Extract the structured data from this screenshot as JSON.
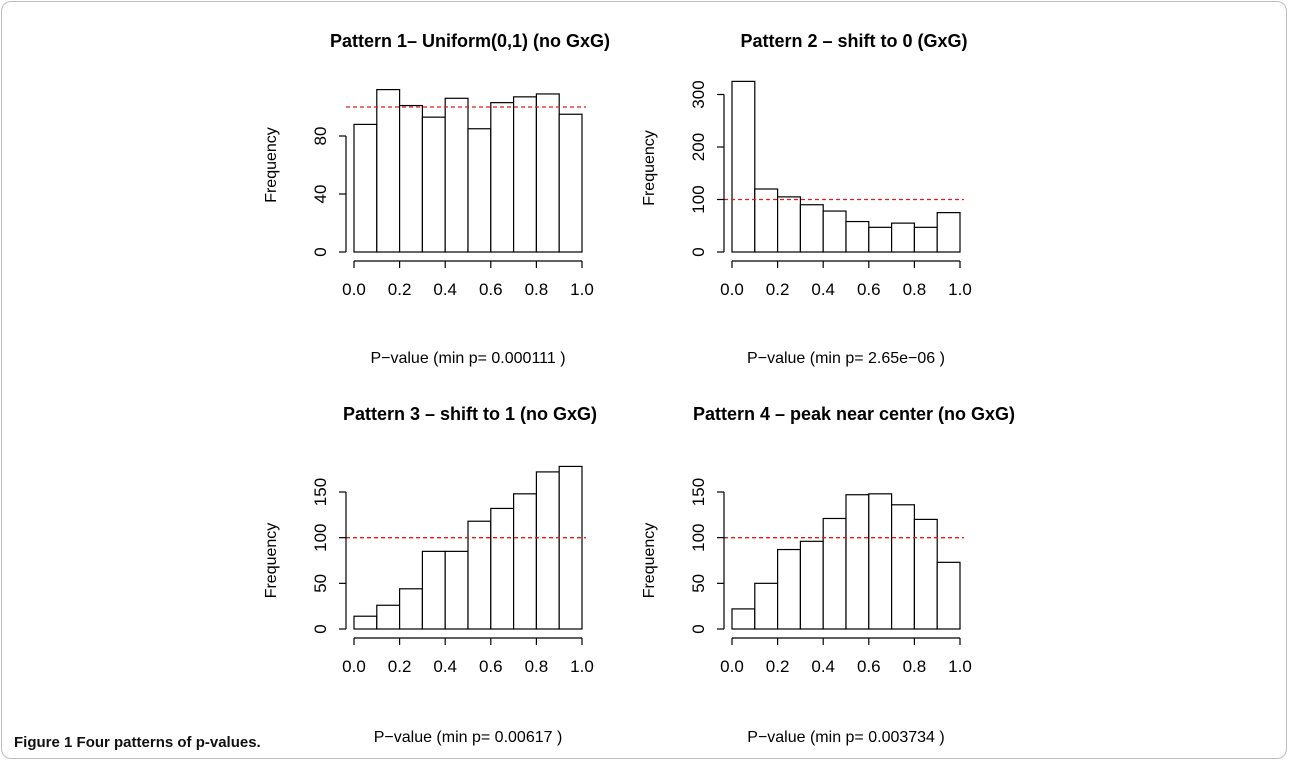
{
  "figure": {
    "caption_label": "Figure 1",
    "caption_text": "Four patterns of p-values."
  },
  "colors": {
    "reference_line": "#e41a1c",
    "bar_fill": "#ffffff",
    "bar_stroke": "#000000"
  },
  "chart_data": [
    {
      "type": "bar",
      "title": "Pattern 1– Uniform(0,1) (no GxG)",
      "xlabel": "P−value (min p= 0.000111 )",
      "ylabel": "Frequency",
      "bin_edges": [
        0.0,
        0.1,
        0.2,
        0.3,
        0.4,
        0.5,
        0.6,
        0.7,
        0.8,
        0.9,
        1.0
      ],
      "values": [
        88,
        112,
        101,
        93,
        106,
        85,
        103,
        107,
        109,
        95
      ],
      "reference_line": 100,
      "xlim": [
        0,
        1
      ],
      "ylim": [
        0,
        120
      ],
      "xticks": [
        0.0,
        0.2,
        0.4,
        0.6,
        0.8,
        1.0
      ],
      "xtick_labels": [
        "0.0",
        "0.2",
        "0.4",
        "0.6",
        "0.8",
        "1.0"
      ],
      "yticks": [
        0,
        40,
        80
      ],
      "ytick_labels": [
        "0",
        "40",
        "80"
      ]
    },
    {
      "type": "bar",
      "title": "Pattern 2 – shift to 0 (GxG)",
      "xlabel": "P−value (min p= 2.65e−06 )",
      "ylabel": "Frequency",
      "bin_edges": [
        0.0,
        0.1,
        0.2,
        0.3,
        0.4,
        0.5,
        0.6,
        0.7,
        0.8,
        0.9,
        1.0
      ],
      "values": [
        325,
        120,
        105,
        90,
        78,
        58,
        47,
        55,
        47,
        75
      ],
      "reference_line": 100,
      "xlim": [
        0,
        1
      ],
      "ylim": [
        0,
        320
      ],
      "xticks": [
        0.0,
        0.2,
        0.4,
        0.6,
        0.8,
        1.0
      ],
      "xtick_labels": [
        "0.0",
        "0.2",
        "0.4",
        "0.6",
        "0.8",
        "1.0"
      ],
      "yticks": [
        0,
        100,
        200,
        300
      ],
      "ytick_labels": [
        "0",
        "100",
        "200",
        "300"
      ]
    },
    {
      "type": "bar",
      "title": "Pattern 3 – shift to 1 (no GxG)",
      "xlabel": "P−value (min p= 0.00617 )",
      "ylabel": "Frequency",
      "bin_edges": [
        0.0,
        0.1,
        0.2,
        0.3,
        0.4,
        0.5,
        0.6,
        0.7,
        0.8,
        0.9,
        1.0
      ],
      "values": [
        14,
        26,
        44,
        85,
        85,
        118,
        132,
        148,
        172,
        178
      ],
      "reference_line": 100,
      "xlim": [
        0,
        1
      ],
      "ylim": [
        0,
        150
      ],
      "xticks": [
        0.0,
        0.2,
        0.4,
        0.6,
        0.8,
        1.0
      ],
      "xtick_labels": [
        "0.0",
        "0.2",
        "0.4",
        "0.6",
        "0.8",
        "1.0"
      ],
      "yticks": [
        0,
        50,
        100,
        150
      ],
      "ytick_labels": [
        "0",
        "50",
        "100",
        "150"
      ]
    },
    {
      "type": "bar",
      "title": "Pattern 4 – peak near center (no GxG)",
      "xlabel": "P−value (min p= 0.003734 )",
      "ylabel": "Frequency",
      "bin_edges": [
        0.0,
        0.1,
        0.2,
        0.3,
        0.4,
        0.5,
        0.6,
        0.7,
        0.8,
        0.9,
        1.0
      ],
      "values": [
        22,
        50,
        87,
        96,
        121,
        147,
        148,
        136,
        120,
        73
      ],
      "reference_line": 100,
      "xlim": [
        0,
        1
      ],
      "ylim": [
        0,
        150
      ],
      "xticks": [
        0.0,
        0.2,
        0.4,
        0.6,
        0.8,
        1.0
      ],
      "xtick_labels": [
        "0.0",
        "0.2",
        "0.4",
        "0.6",
        "0.8",
        "1.0"
      ],
      "yticks": [
        0,
        50,
        100,
        150
      ],
      "ytick_labels": [
        "0",
        "50",
        "100",
        "150"
      ]
    }
  ]
}
